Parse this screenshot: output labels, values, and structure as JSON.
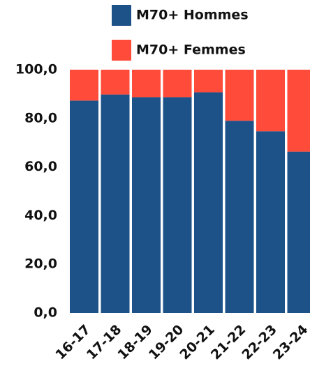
{
  "chart_data": {
    "type": "stacked_bar",
    "categories": [
      "16-17",
      "17-18",
      "18-19",
      "19-20",
      "20-21",
      "21-22",
      "22-23",
      "23-24"
    ],
    "series": [
      {
        "name": "M70+ Hommes",
        "color": "#1d5289",
        "values": [
          87.3,
          89.8,
          88.7,
          88.7,
          90.7,
          79.0,
          74.7,
          66.3
        ]
      },
      {
        "name": "M70+ Femmes",
        "color": "#ff4b3a",
        "values": [
          12.7,
          10.2,
          11.3,
          11.3,
          9.3,
          21.0,
          25.3,
          33.7
        ]
      }
    ],
    "ylim": [
      0,
      100
    ],
    "yticks": [
      {
        "value": 0,
        "label": "0,0"
      },
      {
        "value": 20,
        "label": "20,0"
      },
      {
        "value": 40,
        "label": "40,0"
      },
      {
        "value": 60,
        "label": "60,0"
      },
      {
        "value": 80,
        "label": "80,0"
      },
      {
        "value": 100,
        "label": "100,0"
      }
    ],
    "grid": false,
    "legend": "top"
  }
}
